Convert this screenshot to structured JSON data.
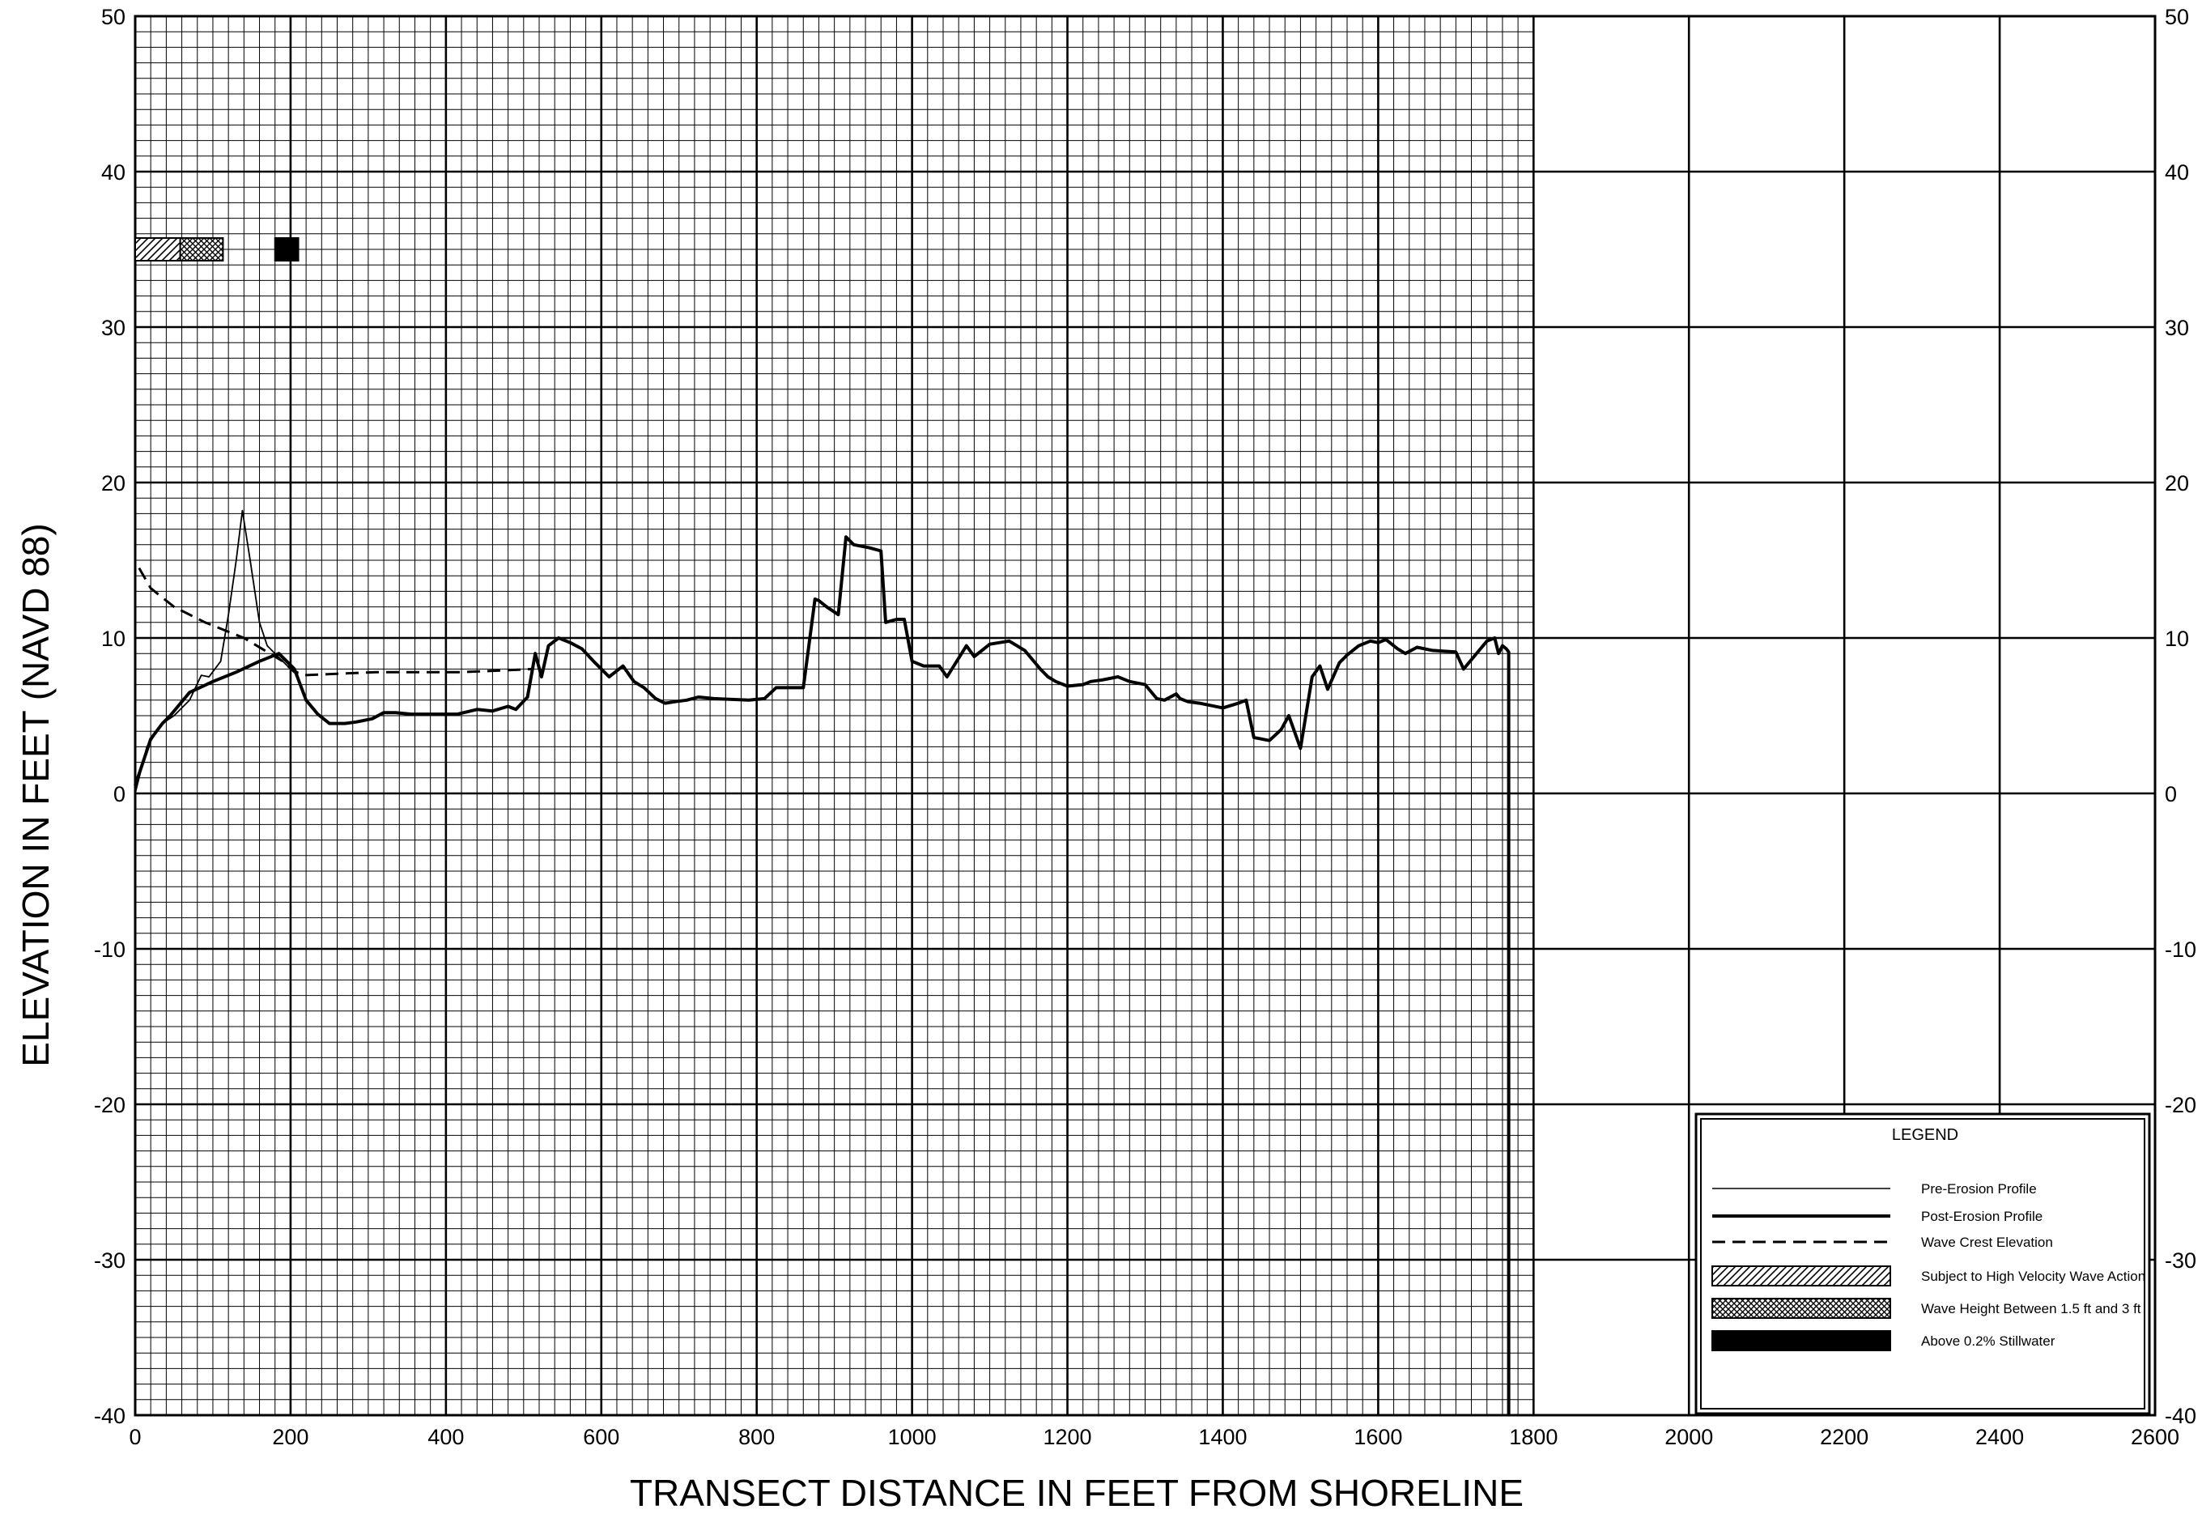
{
  "chart_data": {
    "type": "line",
    "title": "",
    "xlabel": "TRANSECT DISTANCE IN FEET FROM SHORELINE",
    "ylabel": "ELEVATION IN FEET (NAVD 88)",
    "xlim": [
      0,
      2600
    ],
    "ylim": [
      -40,
      50
    ],
    "x_ticks": [
      0,
      200,
      400,
      600,
      800,
      1000,
      1200,
      1400,
      1600,
      1800,
      2000,
      2200,
      2400,
      2600
    ],
    "y_ticks": [
      -40,
      -30,
      -20,
      -10,
      0,
      10,
      20,
      30,
      40,
      50
    ],
    "x_tick_labels": [
      "0",
      "200",
      "400",
      "600",
      "800",
      "1000",
      "1200",
      "1400",
      "1600",
      "1800",
      "2000",
      "2200",
      "2400",
      "2600"
    ],
    "y_tick_labels": [
      "-40",
      "-30",
      "-20",
      "-10",
      "0",
      "10",
      "20",
      "30",
      "40",
      "50"
    ],
    "major_grid_x": 200,
    "major_grid_y": 10,
    "minor_grid_x": 20,
    "minor_grid_y": 1,
    "grid": true,
    "grid_region_x": [
      0,
      1800
    ],
    "legend_position": "bottom-right",
    "series": [
      {
        "name": "Pre-Erosion Profile",
        "style": "thin",
        "x": [
          0,
          15,
          35,
          50,
          70,
          85,
          95,
          110,
          120,
          130,
          138,
          148,
          160,
          170,
          180,
          190,
          200,
          210
        ],
        "y": [
          0,
          3,
          4.5,
          5,
          6,
          7.6,
          7.5,
          8.5,
          11.5,
          15,
          18.2,
          15,
          11,
          9.5,
          9,
          8.5,
          8,
          7.8
        ]
      },
      {
        "name": "Post-Erosion Profile",
        "style": "thick",
        "x": [
          0,
          10,
          20,
          35,
          45,
          55,
          70,
          100,
          130,
          160,
          185,
          205,
          220,
          235,
          250,
          270,
          285,
          305,
          320,
          335,
          355,
          375,
          395,
          415,
          440,
          460,
          480,
          490,
          505,
          515,
          523,
          532,
          545,
          560,
          575,
          590,
          610,
          628,
          642,
          655,
          670,
          682,
          695,
          710,
          725,
          745,
          790,
          810,
          825,
          840,
          860,
          875,
          880,
          890,
          905,
          915,
          925,
          945,
          960,
          966,
          980,
          990,
          1000,
          1015,
          1035,
          1045,
          1070,
          1080,
          1100,
          1125,
          1145,
          1165,
          1175,
          1185,
          1200,
          1220,
          1230,
          1245,
          1265,
          1280,
          1300,
          1315,
          1325,
          1340,
          1345,
          1355,
          1370,
          1400,
          1420,
          1430,
          1440,
          1460,
          1475,
          1485,
          1500,
          1515,
          1525,
          1535,
          1550,
          1560,
          1575,
          1590,
          1600,
          1610,
          1625,
          1635,
          1650,
          1670,
          1700,
          1710,
          1720,
          1730,
          1740,
          1750,
          1755,
          1760,
          1765,
          1768,
          1768
        ],
        "y": [
          0.5,
          2,
          3.5,
          4.5,
          5,
          5.6,
          6.5,
          7.2,
          7.8,
          8.5,
          9,
          8,
          6,
          5.1,
          4.5,
          4.5,
          4.6,
          4.8,
          5.2,
          5.2,
          5.1,
          5.1,
          5.1,
          5.1,
          5.4,
          5.3,
          5.6,
          5.4,
          6.2,
          9,
          7.5,
          9.5,
          10,
          9.7,
          9.3,
          8.5,
          7.5,
          8.2,
          7.2,
          6.8,
          6.1,
          5.8,
          5.9,
          6,
          6.2,
          6.1,
          6,
          6.1,
          6.8,
          6.8,
          6.8,
          12.5,
          12.4,
          12,
          11.5,
          16.5,
          16,
          15.8,
          15.6,
          11,
          11.2,
          11.2,
          8.5,
          8.2,
          8.2,
          7.5,
          9.5,
          8.8,
          9.6,
          9.8,
          9.2,
          8,
          7.5,
          7.2,
          6.9,
          7,
          7.2,
          7.3,
          7.5,
          7.2,
          7,
          6.1,
          6,
          6.4,
          6.1,
          5.9,
          5.8,
          5.5,
          5.8,
          6,
          3.6,
          3.4,
          4.1,
          5,
          2.9,
          7.5,
          8.2,
          6.7,
          8.4,
          8.9,
          9.5,
          9.8,
          9.7,
          9.9,
          9.3,
          9,
          9.4,
          9.2,
          9.1,
          8,
          8.6,
          9.2,
          9.8,
          10,
          9,
          9.5,
          9.3,
          9.1,
          -40
        ],
        "vertical_drop": true
      },
      {
        "name": "Wave Crest Elevation",
        "style": "dashed",
        "x": [
          5,
          20,
          50,
          90,
          140,
          190,
          205,
          215,
          260,
          310,
          360,
          420,
          470,
          510
        ],
        "y": [
          14.5,
          13.2,
          12,
          11,
          10,
          8.5,
          7.8,
          7.6,
          7.7,
          7.8,
          7.8,
          7.8,
          7.9,
          8
        ]
      }
    ],
    "zone_bars": [
      {
        "pattern": "hatch",
        "x_start": 0,
        "x_end": 58,
        "y": 35
      },
      {
        "pattern": "crosshatch",
        "x_start": 58,
        "x_end": 113,
        "y": 35
      },
      {
        "pattern": "solid",
        "x_start": 180,
        "x_end": 210,
        "y": 35
      }
    ],
    "legend": {
      "title": "LEGEND",
      "entries": [
        {
          "label": "Pre-Erosion Profile",
          "symbol": "thin-line"
        },
        {
          "label": "Post-Erosion Profile",
          "symbol": "thick-line"
        },
        {
          "label": "Wave Crest Elevation",
          "symbol": "dashed-line"
        },
        {
          "label": "Subject to High Velocity Wave Action",
          "symbol": "hatch"
        },
        {
          "label": "Wave Height Between 1.5 ft and 3 ft",
          "symbol": "crosshatch"
        },
        {
          "label": "Above 0.2% Stillwater",
          "symbol": "solid"
        }
      ]
    }
  }
}
